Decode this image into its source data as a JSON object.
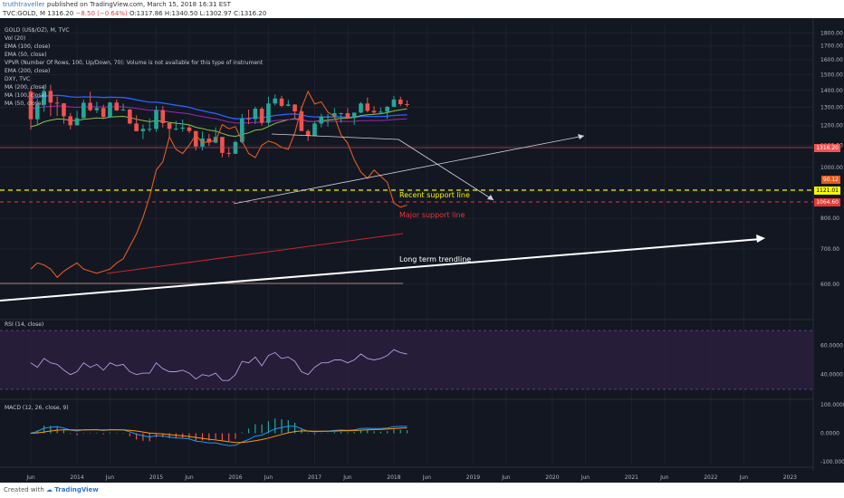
{
  "header": {
    "author": "truthtraveller",
    "published": " published on TradingView.com, March 15, 2018 16:31 EST",
    "symbol": "TVC:GOLD, M",
    "price": "1316.20",
    "change": "−8.50 (−0.64%)",
    "ohlc": "O:1317.86 H:1340.50 L:1302.97 C:1316.20"
  },
  "legend": {
    "title": "GOLD (US$/OZ), M, TVC",
    "lines": [
      "Vol (20)",
      "EMA (100, close)",
      "EMA (50, close)",
      "VPVR (Number Of Rows, 100, Up/Down, 70): Volume is not available for this type of instrument",
      "EMA (200, close)",
      "DXY, TVC",
      "MA (200, close)",
      "MA (100, close)",
      "MA (50, close)"
    ],
    "rsi": "RSI (14, close)",
    "macd": "MACD (12, 26, close, 9)"
  },
  "annotations": {
    "recent_support": "Recent support line",
    "major_support": "Major support line",
    "long_term": "Long term trendline"
  },
  "price_tags": {
    "last": "1316.20",
    "dxy": "90.12",
    "recent": "1121.01",
    "major": "1064.60"
  },
  "footer": {
    "created": "Created with",
    "brand": "TradingView"
  },
  "colors": {
    "background": "#131722",
    "up": "#26a69a",
    "down": "#ef5350",
    "dxy": "#e65a1f",
    "ema100": "#2962ff",
    "ema200": "#9c27b0",
    "recent_support": "#f4f800",
    "major_support": "#e53935",
    "trendline": "#ffffff"
  },
  "chart_data": [
    {
      "type": "line",
      "title": "GOLD (US$/OZ), M, TVC",
      "x_ticks": [
        "Jun",
        "2014",
        "Jun",
        "2015",
        "Jun",
        "2016",
        "Jun",
        "2017",
        "Jun",
        "2018",
        "Jun",
        "2019",
        "Jun",
        "2020",
        "Jun",
        "2021",
        "Jun",
        "2022",
        "Jun",
        "2023"
      ],
      "y_ticks": [
        600,
        700,
        800,
        900,
        1000,
        1100,
        1200,
        1300,
        1400,
        1500,
        1600,
        1700,
        1800
      ],
      "ylim": [
        520,
        1860
      ],
      "y_scale": "log",
      "candles": {
        "dates": [
          "2013-06",
          "2013-07",
          "2013-08",
          "2013-09",
          "2013-10",
          "2013-11",
          "2013-12",
          "2014-01",
          "2014-02",
          "2014-03",
          "2014-04",
          "2014-05",
          "2014-06",
          "2014-07",
          "2014-08",
          "2014-09",
          "2014-10",
          "2014-11",
          "2014-12",
          "2015-01",
          "2015-02",
          "2015-03",
          "2015-04",
          "2015-05",
          "2015-06",
          "2015-07",
          "2015-08",
          "2015-09",
          "2015-10",
          "2015-11",
          "2015-12",
          "2016-01",
          "2016-02",
          "2016-03",
          "2016-04",
          "2016-05",
          "2016-06",
          "2016-07",
          "2016-08",
          "2016-09",
          "2016-10",
          "2016-11",
          "2016-12",
          "2017-01",
          "2017-02",
          "2017-03",
          "2017-04",
          "2017-05",
          "2017-06",
          "2017-07",
          "2017-08",
          "2017-09",
          "2017-10",
          "2017-11",
          "2017-12",
          "2018-01",
          "2018-02",
          "2018-03"
        ],
        "open": [
          1392,
          1234,
          1314,
          1396,
          1327,
          1323,
          1250,
          1202,
          1240,
          1326,
          1284,
          1296,
          1246,
          1327,
          1282,
          1287,
          1211,
          1171,
          1183,
          1183,
          1284,
          1213,
          1183,
          1184,
          1190,
          1172,
          1095,
          1134,
          1114,
          1142,
          1065,
          1061,
          1117,
          1238,
          1235,
          1292,
          1215,
          1322,
          1351,
          1308,
          1316,
          1277,
          1172,
          1147,
          1211,
          1249,
          1249,
          1267,
          1267,
          1241,
          1270,
          1322,
          1280,
          1271,
          1275,
          1303,
          1345,
          1318
        ],
        "high": [
          1417,
          1348,
          1434,
          1434,
          1362,
          1324,
          1268,
          1280,
          1345,
          1392,
          1331,
          1315,
          1332,
          1345,
          1322,
          1292,
          1255,
          1206,
          1238,
          1307,
          1307,
          1220,
          1225,
          1232,
          1205,
          1172,
          1170,
          1157,
          1191,
          1142,
          1089,
          1123,
          1263,
          1287,
          1304,
          1303,
          1362,
          1375,
          1367,
          1343,
          1317,
          1306,
          1180,
          1220,
          1264,
          1263,
          1296,
          1270,
          1296,
          1270,
          1330,
          1357,
          1306,
          1299,
          1307,
          1366,
          1362,
          1340
        ],
        "high_note": "values estimated",
        "low": [
          1180,
          1208,
          1275,
          1251,
          1251,
          1210,
          1180,
          1200,
          1240,
          1277,
          1268,
          1240,
          1240,
          1280,
          1281,
          1207,
          1183,
          1131,
          1167,
          1168,
          1190,
          1142,
          1175,
          1169,
          1162,
          1077,
          1077,
          1098,
          1111,
          1045,
          1046,
          1060,
          1111,
          1208,
          1208,
          1200,
          1199,
          1310,
          1301,
          1306,
          1241,
          1171,
          1122,
          1146,
          1191,
          1195,
          1240,
          1215,
          1236,
          1204,
          1267,
          1272,
          1260,
          1264,
          1236,
          1302,
          1307,
          1303
        ],
        "close": [
          1234,
          1314,
          1396,
          1327,
          1323,
          1250,
          1202,
          1240,
          1326,
          1284,
          1296,
          1246,
          1327,
          1282,
          1287,
          1211,
          1171,
          1183,
          1183,
          1284,
          1213,
          1183,
          1184,
          1190,
          1172,
          1095,
          1134,
          1114,
          1142,
          1065,
          1061,
          1117,
          1238,
          1235,
          1292,
          1215,
          1322,
          1351,
          1308,
          1316,
          1277,
          1172,
          1147,
          1211,
          1249,
          1249,
          1267,
          1267,
          1241,
          1270,
          1322,
          1280,
          1271,
          1275,
          1303,
          1345,
          1318,
          1316
        ]
      },
      "series": [
        {
          "name": "DXY, TVC",
          "scale": "separate (not shown)",
          "values_note": "normalized 0-1 height within panel",
          "values": [
            0.1,
            0.13,
            0.12,
            0.1,
            0.06,
            0.09,
            0.11,
            0.13,
            0.1,
            0.09,
            0.08,
            0.09,
            0.1,
            0.13,
            0.15,
            0.21,
            0.27,
            0.35,
            0.45,
            0.58,
            0.62,
            0.74,
            0.68,
            0.66,
            0.7,
            0.75,
            0.71,
            0.72,
            0.72,
            0.8,
            0.78,
            0.79,
            0.72,
            0.66,
            0.64,
            0.7,
            0.72,
            0.71,
            0.69,
            0.68,
            0.76,
            0.88,
            0.96,
            0.9,
            0.91,
            0.86,
            0.84,
            0.75,
            0.71,
            0.63,
            0.57,
            0.54,
            0.58,
            0.55,
            0.52,
            0.42,
            0.4,
            0.41
          ]
        }
      ]
    },
    {
      "type": "line",
      "title": "RSI (14, close)",
      "y_ticks": [
        40,
        60
      ],
      "y_tick_labels": [
        "40.0000",
        "60.0000"
      ],
      "ylim": [
        25,
        75
      ],
      "bands": [
        30,
        70
      ],
      "series": [
        {
          "name": "RSI (14, close)",
          "values": [
            48,
            45,
            51,
            48,
            47,
            43,
            40,
            42,
            48,
            45,
            47,
            43,
            48,
            46,
            47,
            42,
            40,
            41,
            41,
            48,
            44,
            42,
            42,
            43,
            41,
            37,
            40,
            39,
            41,
            36,
            36,
            40,
            49,
            48,
            52,
            46,
            53,
            55,
            51,
            52,
            49,
            42,
            40,
            45,
            48,
            48,
            50,
            50,
            48,
            50,
            54,
            51,
            50,
            51,
            53,
            57,
            55,
            54
          ]
        }
      ]
    },
    {
      "type": "line",
      "title": "MACD (12, 26, close, 9)",
      "y_ticks": [
        -100,
        0,
        100
      ],
      "y_tick_labels": [
        "-100.0000",
        "0.0000",
        "100.0000"
      ],
      "ylim": [
        -110,
        110
      ]
    }
  ]
}
